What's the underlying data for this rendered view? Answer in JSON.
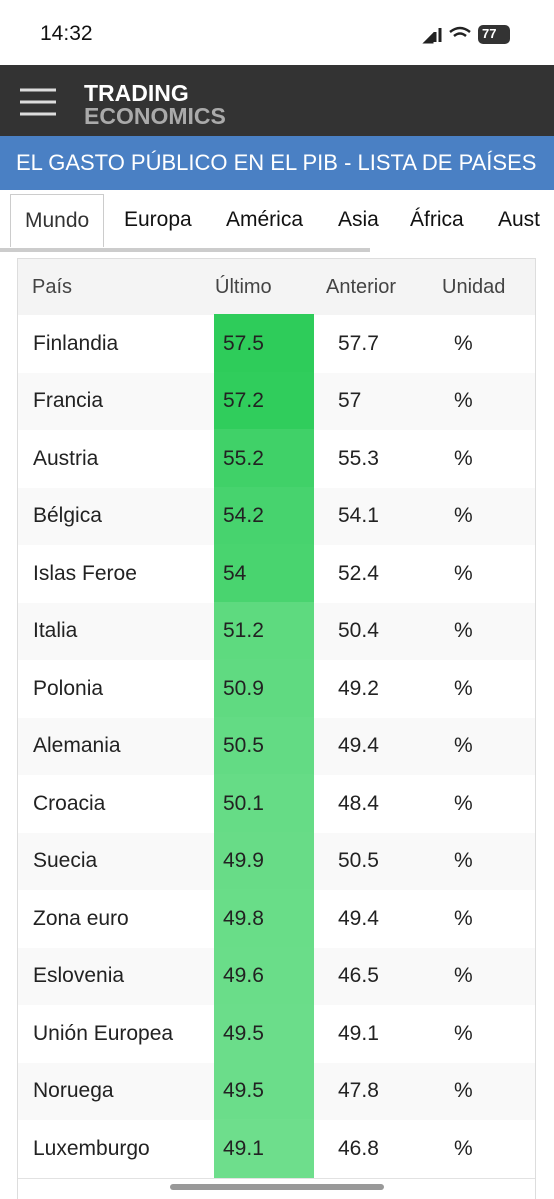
{
  "status_bar": {
    "time": "14:32",
    "battery": "77"
  },
  "header": {
    "logo_line1": "TRADING",
    "logo_line2": "ECONOMICS"
  },
  "title": "EL GASTO PÚBLICO EN EL PIB - LISTA DE PAÍSES",
  "tabs": [
    "Mundo",
    "Europa",
    "América",
    "Asia",
    "África",
    "Aust"
  ],
  "table": {
    "columns": [
      "País",
      "Último",
      "Anterior",
      "Unidad"
    ],
    "rows": [
      [
        "Finlandia",
        "57.5",
        "57.7",
        "%"
      ],
      [
        "Francia",
        "57.2",
        "57",
        "%"
      ],
      [
        "Austria",
        "55.2",
        "55.3",
        "%"
      ],
      [
        "Bélgica",
        "54.2",
        "54.1",
        "%"
      ],
      [
        "Islas Feroe",
        "54",
        "52.4",
        "%"
      ],
      [
        "Italia",
        "51.2",
        "50.4",
        "%"
      ],
      [
        "Polonia",
        "50.9",
        "49.2",
        "%"
      ],
      [
        "Alemania",
        "50.5",
        "49.4",
        "%"
      ],
      [
        "Croacia",
        "50.1",
        "48.4",
        "%"
      ],
      [
        "Suecia",
        "49.9",
        "50.5",
        "%"
      ],
      [
        "Zona euro",
        "49.8",
        "49.4",
        "%"
      ],
      [
        "Eslovenia",
        "49.6",
        "46.5",
        "%"
      ],
      [
        "Unión Europea",
        "49.5",
        "49.1",
        "%"
      ],
      [
        "Noruega",
        "49.5",
        "47.8",
        "%"
      ],
      [
        "Luxemburgo",
        "49.1",
        "46.8",
        "%"
      ]
    ]
  }
}
